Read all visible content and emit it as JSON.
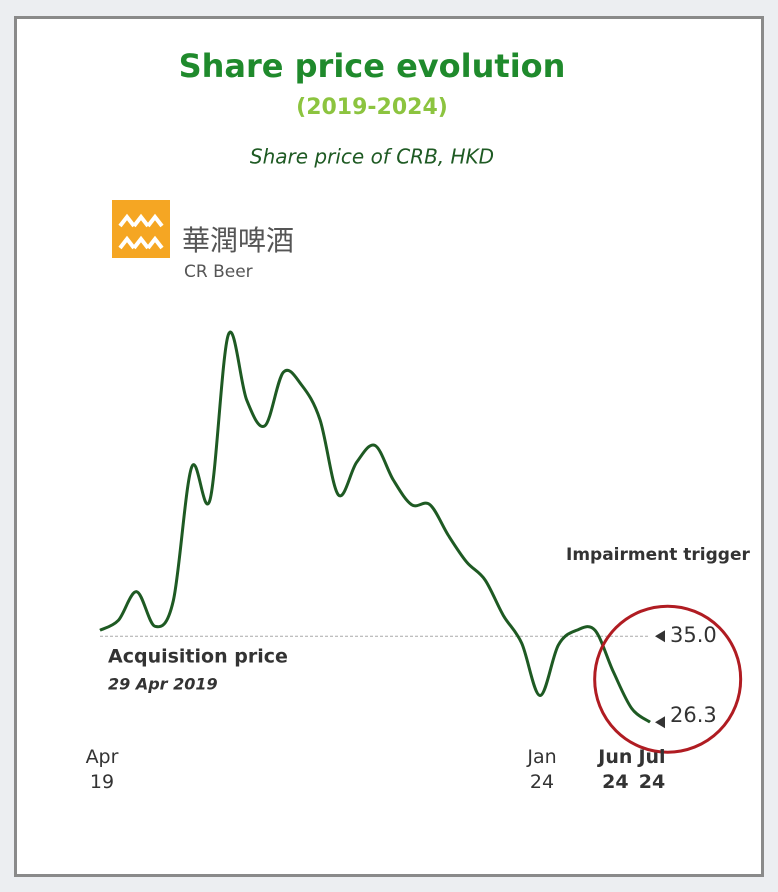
{
  "chart_data": {
    "type": "line",
    "title": "Share price evolution",
    "subtitle": "(2019-2024)",
    "y_label": "Share price of CRB, HKD",
    "logo": {
      "name": "華潤啤酒",
      "name_en": "CR Beer"
    },
    "categories": [
      "Apr 19",
      null,
      null,
      null,
      null,
      null,
      null,
      null,
      null,
      null,
      null,
      null,
      null,
      null,
      null,
      null,
      null,
      null,
      null,
      null,
      null,
      null,
      null,
      null,
      "Jan 24",
      null,
      null,
      null,
      "Jun 24",
      null,
      "Jul 24"
    ],
    "series": [
      {
        "name": "CRB",
        "color": "#1e5a23",
        "values": [
          35.6,
          36.6,
          39.5,
          36.0,
          38.6,
          52.1,
          48.8,
          65.5,
          58.9,
          56.3,
          61.7,
          60.4,
          56.9,
          49.3,
          52.6,
          54.3,
          50.8,
          48.3,
          48.3,
          45.2,
          42.5,
          40.7,
          37.1,
          34.3,
          29.0,
          34.1,
          35.6,
          35.6,
          31.4,
          27.7,
          26.3
        ]
      }
    ],
    "ylim": [
      22,
      68
    ],
    "reference_line": {
      "value": 35,
      "label": "35.0",
      "name": "Acquisition price",
      "date": "29 Apr 2019"
    },
    "annotation": "Impairment trigger",
    "highlight_color": "#b01c22"
  }
}
